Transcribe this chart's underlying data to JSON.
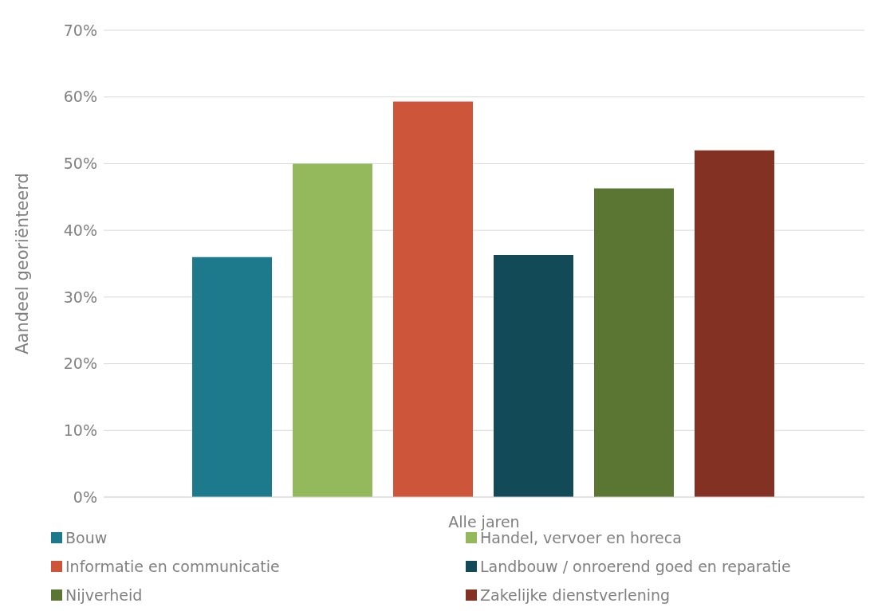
{
  "chart_data": {
    "type": "bar",
    "xlabel": "Alle jaren",
    "ylabel": "Aandeel georiënteerd",
    "categories": [
      null
    ],
    "series": [
      {
        "name": "Bouw",
        "color": "#1c7a8c",
        "values": [
          36
        ]
      },
      {
        "name": "Handel, vervoer en horeca",
        "color": "#93b95c",
        "values": [
          50
        ]
      },
      {
        "name": "Informatie en communicatie",
        "color": "#cd563a",
        "values": [
          59.3
        ]
      },
      {
        "name": "Landbouw / onroerend goed en reparatie",
        "color": "#124a57",
        "values": [
          36.3
        ]
      },
      {
        "name": "Nijverheid",
        "color": "#5b7532",
        "values": [
          46.3
        ]
      },
      {
        "name": "Zakelijke dienstverlening",
        "color": "#833122",
        "values": [
          52
        ]
      }
    ],
    "ylim": [
      0,
      70
    ],
    "yticks": [
      {
        "value": 0,
        "label": "0%"
      },
      {
        "value": 10,
        "label": "10%"
      },
      {
        "value": 20,
        "label": "20%"
      },
      {
        "value": 30,
        "label": "30%"
      },
      {
        "value": 40,
        "label": "40%"
      },
      {
        "value": 50,
        "label": "50%"
      },
      {
        "value": 60,
        "label": "60%"
      },
      {
        "value": 70,
        "label": "70%"
      }
    ],
    "grid": "y",
    "legend": "bottom"
  }
}
